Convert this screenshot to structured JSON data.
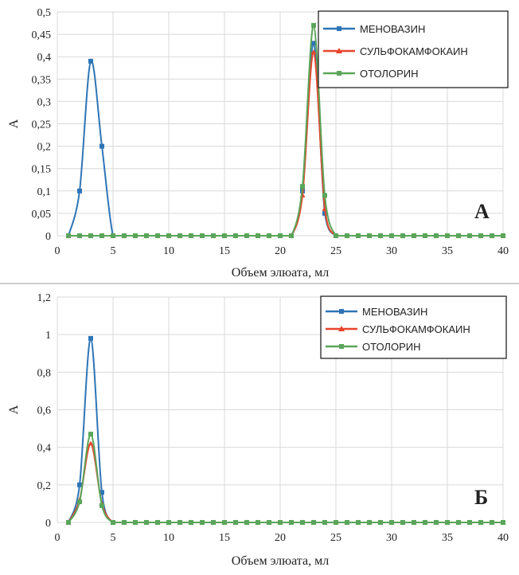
{
  "chart_data": [
    {
      "type": "line",
      "panel_label": "А",
      "xlabel": "Объем элюата, мл",
      "ylabel": "А",
      "xlim": [
        0,
        40
      ],
      "ylim": [
        0,
        0.5
      ],
      "xticks": [
        0,
        5,
        10,
        15,
        20,
        25,
        30,
        35,
        40
      ],
      "yticks": [
        0,
        0.05,
        0.1,
        0.15,
        0.2,
        0.25,
        0.3,
        0.35,
        0.4,
        0.45,
        0.5
      ],
      "ytick_labels": [
        "0",
        "0,05",
        "0,1",
        "0,15",
        "0,2",
        "0,25",
        "0,3",
        "0,35",
        "0,4",
        "0,45",
        "0,5"
      ],
      "xtick_labels": [
        "0",
        "5",
        "10",
        "15",
        "20",
        "25",
        "30",
        "35",
        "40"
      ],
      "grid": true,
      "legend_position": "top-right",
      "x": [
        1,
        2,
        3,
        4,
        5,
        6,
        7,
        8,
        9,
        10,
        11,
        12,
        13,
        14,
        15,
        16,
        17,
        18,
        19,
        20,
        21,
        22,
        23,
        24,
        25,
        26,
        27,
        28,
        29,
        30,
        31,
        32,
        33,
        34,
        35,
        36,
        37,
        38,
        39,
        40
      ],
      "series": [
        {
          "name": "МЕНОВАЗИН",
          "color": "#2e75b6",
          "marker": "square",
          "values": [
            0,
            0.1,
            0.39,
            0.2,
            0,
            0,
            0,
            0,
            0,
            0,
            0,
            0,
            0,
            0,
            0,
            0,
            0,
            0,
            0,
            0,
            0,
            0.1,
            0.43,
            0.05,
            0,
            0,
            0,
            0,
            0,
            0,
            0,
            0,
            0,
            0,
            0,
            0,
            0,
            0,
            0,
            0
          ]
        },
        {
          "name": "СУЛЬФОКАМФОКАИН",
          "color": "#e8452c",
          "marker": "triangle",
          "values": [
            0,
            0,
            0,
            0,
            0,
            0,
            0,
            0,
            0,
            0,
            0,
            0,
            0,
            0,
            0,
            0,
            0,
            0,
            0,
            0,
            0,
            0.09,
            0.41,
            0.06,
            0,
            0,
            0,
            0,
            0,
            0,
            0,
            0,
            0,
            0,
            0,
            0,
            0,
            0,
            0,
            0
          ]
        },
        {
          "name": "ОТОЛОРИН",
          "color": "#5aa55a",
          "marker": "square",
          "values": [
            0,
            0,
            0,
            0,
            0,
            0,
            0,
            0,
            0,
            0,
            0,
            0,
            0,
            0,
            0,
            0,
            0,
            0,
            0,
            0,
            0,
            0.11,
            0.47,
            0.09,
            0,
            0,
            0,
            0,
            0,
            0,
            0,
            0,
            0,
            0,
            0,
            0,
            0,
            0,
            0,
            0
          ]
        }
      ]
    },
    {
      "type": "line",
      "panel_label": "Б",
      "xlabel": "Объем элюата, мл",
      "ylabel": "А",
      "xlim": [
        0,
        40
      ],
      "ylim": [
        0,
        1.2
      ],
      "xticks": [
        0,
        5,
        10,
        15,
        20,
        25,
        30,
        35,
        40
      ],
      "yticks": [
        0,
        0.2,
        0.4,
        0.6,
        0.8,
        1,
        1.2
      ],
      "ytick_labels": [
        "0",
        "0,2",
        "0,4",
        "0,6",
        "0,8",
        "1",
        "1,2"
      ],
      "xtick_labels": [
        "0",
        "5",
        "10",
        "15",
        "20",
        "25",
        "30",
        "35",
        "40"
      ],
      "grid": true,
      "legend_position": "top-right",
      "x": [
        1,
        2,
        3,
        4,
        5,
        6,
        7,
        8,
        9,
        10,
        11,
        12,
        13,
        14,
        15,
        16,
        17,
        18,
        19,
        20,
        21,
        22,
        23,
        24,
        25,
        26,
        27,
        28,
        29,
        30,
        31,
        32,
        33,
        34,
        35,
        36,
        37,
        38,
        39,
        40
      ],
      "series": [
        {
          "name": "МЕНОВАЗИН",
          "color": "#2e75b6",
          "marker": "square",
          "values": [
            0,
            0.2,
            0.98,
            0.16,
            0,
            0,
            0,
            0,
            0,
            0,
            0,
            0,
            0,
            0,
            0,
            0,
            0,
            0,
            0,
            0,
            0,
            0,
            0,
            0,
            0,
            0,
            0,
            0,
            0,
            0,
            0,
            0,
            0,
            0,
            0,
            0,
            0,
            0,
            0,
            0
          ]
        },
        {
          "name": "СУЛЬФОКАМФОКАИН",
          "color": "#e8452c",
          "marker": "triangle",
          "values": [
            0,
            0.12,
            0.42,
            0.1,
            0,
            0,
            0,
            0,
            0,
            0,
            0,
            0,
            0,
            0,
            0,
            0,
            0,
            0,
            0,
            0,
            0,
            0,
            0,
            0,
            0,
            0,
            0,
            0,
            0,
            0,
            0,
            0,
            0,
            0,
            0,
            0,
            0,
            0,
            0,
            0
          ]
        },
        {
          "name": "ОТОЛОРИН",
          "color": "#5aa55a",
          "marker": "square",
          "values": [
            0,
            0.11,
            0.47,
            0.09,
            0,
            0,
            0,
            0,
            0,
            0,
            0,
            0,
            0,
            0,
            0,
            0,
            0,
            0,
            0,
            0,
            0,
            0,
            0,
            0,
            0,
            0,
            0,
            0,
            0,
            0,
            0,
            0,
            0,
            0,
            0,
            0,
            0,
            0,
            0,
            0
          ]
        }
      ]
    }
  ]
}
